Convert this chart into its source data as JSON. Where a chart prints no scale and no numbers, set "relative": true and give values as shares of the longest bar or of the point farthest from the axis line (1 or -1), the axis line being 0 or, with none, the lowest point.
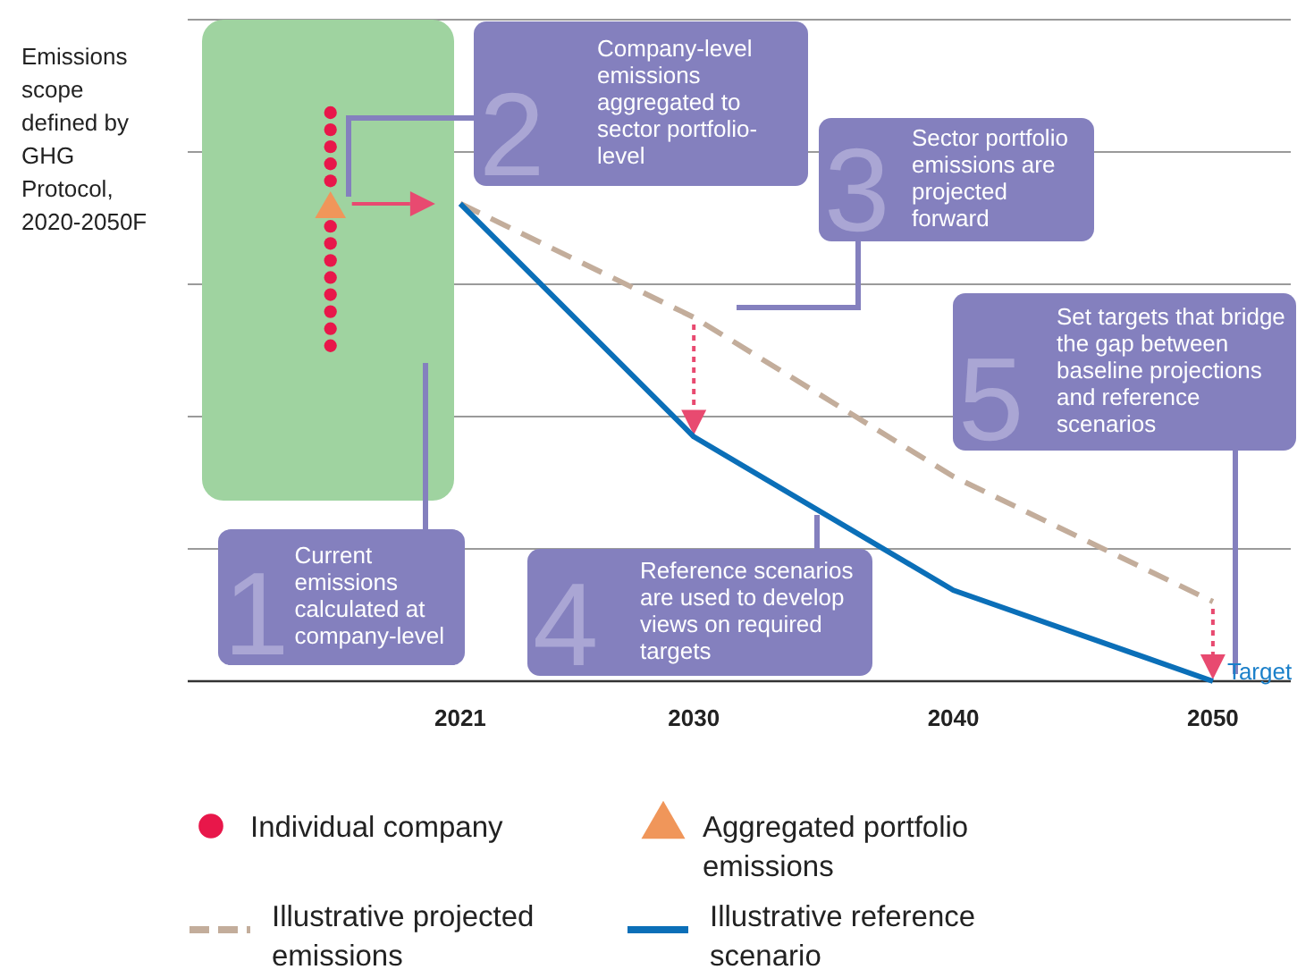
{
  "chart_data": {
    "type": "line",
    "relative": true,
    "ylabel": "Emissions scope defined by GHG Protocol, 2020-2050F",
    "xlim": [
      2010.5,
      2053
    ],
    "xticks": [
      2021,
      2030,
      2040,
      2050
    ],
    "grid": "y",
    "legend": "bottom",
    "series": [
      {
        "name": "Individual company",
        "type": "scatter",
        "marker": "circle",
        "color": "#e8174a",
        "x": [
          2016,
          2016,
          2016,
          2016,
          2016,
          2016,
          2016,
          2016,
          2016,
          2016,
          2016,
          2016,
          2016
        ],
        "values": [
          1,
          0.97,
          0.94,
          0.91,
          0.88,
          0.8,
          0.77,
          0.74,
          0.71,
          0.68,
          0.65,
          0.62,
          0.59
        ]
      },
      {
        "name": "Aggregated portfolio emissions",
        "type": "scatter",
        "marker": "triangle",
        "color": "#f0965a",
        "x": [
          2016
        ],
        "values": [
          0.83
        ]
      },
      {
        "name": "Illustrative projected emissions",
        "line_style": "dashed",
        "color": "#c3ad9b",
        "x": [
          2021,
          2030,
          2040,
          2050
        ],
        "values": [
          0.84,
          0.64,
          0.36,
          0.14
        ]
      },
      {
        "name": "Illustrative reference scenario",
        "line_style": "solid",
        "color": "#0b6fb8",
        "x": [
          2021,
          2030,
          2040,
          2050
        ],
        "values": [
          0.84,
          0.43,
          0.16,
          0
        ]
      }
    ],
    "annotations": [
      "1",
      "Current emissions calculated at company-level",
      "2",
      "Company-level emissions aggregated to sector portfolio-level",
      "3",
      "Sector portfolio emissions are projected forward",
      "4",
      "Reference scenarios are used to develop views on required targets",
      "5",
      "Set targets that bridge the gap between baseline projections and reference scenarios",
      {
        "text": "Target",
        "x": 2050,
        "y": 0
      }
    ]
  }
}
